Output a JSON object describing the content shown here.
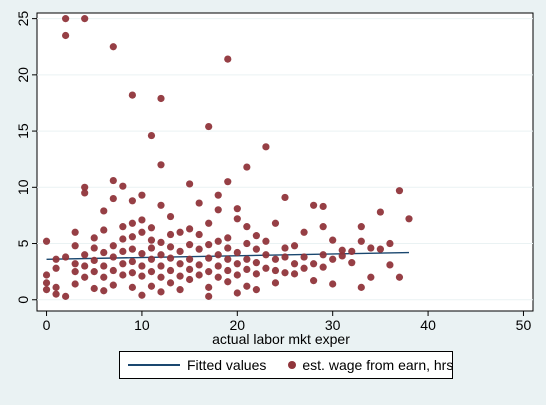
{
  "chart_data": {
    "type": "scatter",
    "title": "",
    "xlabel": "actual labor mkt exper",
    "ylabel": "",
    "xlim": [
      -1,
      51
    ],
    "ylim": [
      -1,
      25.5
    ],
    "x_ticks": [
      0,
      10,
      20,
      30,
      40,
      50
    ],
    "y_ticks": [
      0,
      5,
      10,
      15,
      20,
      25
    ],
    "x_tick_labels": [
      "0",
      "10",
      "20",
      "30",
      "40",
      "50"
    ],
    "y_tick_labels": [
      "0",
      "5",
      "10",
      "15",
      "20",
      "25"
    ],
    "grid": "horizontal",
    "legend": {
      "position": "bottom",
      "entries": [
        "Fitted values",
        "est. wage from earn, hrs"
      ]
    },
    "series": [
      {
        "name": "est. wage from earn, hrs",
        "type": "scatter",
        "color": "#90353b",
        "points": [
          [
            2,
            25.0
          ],
          [
            4,
            25.0
          ],
          [
            2,
            23.5
          ],
          [
            7,
            22.5
          ],
          [
            19,
            21.4
          ],
          [
            9,
            18.2
          ],
          [
            12,
            17.9
          ],
          [
            17,
            15.4
          ],
          [
            11,
            14.6
          ],
          [
            23,
            13.6
          ],
          [
            12,
            12.0
          ],
          [
            21,
            11.8
          ],
          [
            7,
            10.6
          ],
          [
            15,
            10.3
          ],
          [
            19,
            10.5
          ],
          [
            4,
            10.0
          ],
          [
            8,
            10.1
          ],
          [
            4,
            9.5
          ],
          [
            10,
            9.3
          ],
          [
            18,
            9.3
          ],
          [
            25,
            9.1
          ],
          [
            37,
            9.7
          ],
          [
            7,
            9.0
          ],
          [
            9,
            8.8
          ],
          [
            12,
            8.4
          ],
          [
            16,
            8.6
          ],
          [
            18,
            8.0
          ],
          [
            28,
            8.4
          ],
          [
            29,
            8.3
          ],
          [
            35,
            7.8
          ],
          [
            0,
            5.2
          ],
          [
            3,
            6.0
          ],
          [
            6,
            7.9
          ],
          [
            10,
            7.1
          ],
          [
            13,
            7.4
          ],
          [
            20,
            7.2
          ],
          [
            24,
            6.8
          ],
          [
            38,
            7.2
          ],
          [
            27,
            6.0
          ],
          [
            29,
            6.5
          ],
          [
            33,
            6.5
          ],
          [
            8,
            6.5
          ],
          [
            14,
            6.0
          ],
          [
            17,
            6.8
          ],
          [
            21,
            6.5
          ],
          [
            30,
            5.3
          ],
          [
            36,
            5.0
          ],
          [
            3,
            4.8
          ],
          [
            5,
            5.5
          ],
          [
            9,
            4.5
          ],
          [
            11,
            5.3
          ],
          [
            13,
            5.8
          ],
          [
            15,
            4.9
          ],
          [
            19,
            5.5
          ],
          [
            22,
            4.5
          ],
          [
            26,
            4.8
          ],
          [
            31,
            4.4
          ],
          [
            34,
            4.6
          ],
          [
            25,
            3.8
          ],
          [
            28,
            3.2
          ],
          [
            32,
            3.3
          ],
          [
            36,
            3.1
          ],
          [
            37,
            2.0
          ],
          [
            30,
            1.4
          ],
          [
            33,
            1.1
          ],
          [
            28,
            1.7
          ],
          [
            26,
            2.3
          ],
          [
            24,
            1.5
          ],
          [
            21,
            1.2
          ],
          [
            19,
            1.6
          ],
          [
            17,
            1.1
          ],
          [
            15,
            1.8
          ],
          [
            13,
            1.5
          ],
          [
            11,
            1.2
          ],
          [
            9,
            1.1
          ],
          [
            7,
            1.3
          ],
          [
            5,
            1.0
          ],
          [
            3,
            1.4
          ],
          [
            1,
            1.1
          ],
          [
            2,
            0.3
          ],
          [
            10,
            0.4
          ],
          [
            17,
            0.3
          ],
          [
            20,
            0.6
          ],
          [
            0,
            2.2
          ],
          [
            0,
            1.5
          ],
          [
            1,
            2.8
          ],
          [
            1,
            3.6
          ],
          [
            2,
            3.8
          ],
          [
            3,
            2.5
          ],
          [
            3,
            3.2
          ],
          [
            4,
            2.0
          ],
          [
            4,
            3.0
          ],
          [
            4,
            4.0
          ],
          [
            5,
            2.5
          ],
          [
            5,
            3.5
          ],
          [
            6,
            2.0
          ],
          [
            6,
            3.0
          ],
          [
            6,
            4.2
          ],
          [
            7,
            2.6
          ],
          [
            7,
            3.8
          ],
          [
            7,
            4.8
          ],
          [
            8,
            2.2
          ],
          [
            8,
            3.2
          ],
          [
            8,
            4.3
          ],
          [
            8,
            5.4
          ],
          [
            9,
            2.4
          ],
          [
            9,
            3.4
          ],
          [
            9,
            5.6
          ],
          [
            10,
            2.1
          ],
          [
            10,
            3.0
          ],
          [
            10,
            4.1
          ],
          [
            10,
            6.0
          ],
          [
            11,
            2.5
          ],
          [
            11,
            3.6
          ],
          [
            11,
            4.6
          ],
          [
            12,
            2.0
          ],
          [
            12,
            3.0
          ],
          [
            12,
            4.0
          ],
          [
            12,
            5.1
          ],
          [
            13,
            2.6
          ],
          [
            13,
            3.7
          ],
          [
            13,
            4.7
          ],
          [
            14,
            2.1
          ],
          [
            14,
            3.2
          ],
          [
            14,
            4.3
          ],
          [
            15,
            2.7
          ],
          [
            15,
            3.6
          ],
          [
            16,
            2.2
          ],
          [
            16,
            3.1
          ],
          [
            16,
            4.5
          ],
          [
            16,
            5.8
          ],
          [
            17,
            2.5
          ],
          [
            17,
            3.7
          ],
          [
            17,
            4.9
          ],
          [
            18,
            2.0
          ],
          [
            18,
            3.0
          ],
          [
            18,
            4.0
          ],
          [
            18,
            5.2
          ],
          [
            19,
            2.6
          ],
          [
            19,
            3.6
          ],
          [
            19,
            4.6
          ],
          [
            20,
            2.2
          ],
          [
            20,
            3.2
          ],
          [
            20,
            4.2
          ],
          [
            21,
            2.7
          ],
          [
            21,
            3.6
          ],
          [
            21,
            5.0
          ],
          [
            22,
            2.3
          ],
          [
            22,
            3.3
          ],
          [
            23,
            2.8
          ],
          [
            23,
            4.0
          ],
          [
            23,
            5.2
          ],
          [
            24,
            2.6
          ],
          [
            24,
            3.6
          ],
          [
            25,
            2.4
          ],
          [
            25,
            4.6
          ],
          [
            26,
            3.2
          ],
          [
            27,
            2.8
          ],
          [
            27,
            3.8
          ],
          [
            29,
            2.9
          ],
          [
            29,
            4.0
          ],
          [
            30,
            3.6
          ],
          [
            31,
            3.9
          ],
          [
            32,
            4.3
          ],
          [
            33,
            5.2
          ],
          [
            34,
            2.0
          ],
          [
            35,
            4.5
          ],
          [
            1,
            0.5
          ],
          [
            6,
            0.8
          ],
          [
            12,
            0.7
          ],
          [
            14,
            0.9
          ],
          [
            22,
            0.9
          ],
          [
            0,
            0.9
          ],
          [
            5,
            4.6
          ],
          [
            11,
            6.4
          ],
          [
            15,
            6.3
          ],
          [
            20,
            8.1
          ],
          [
            22,
            5.7
          ],
          [
            9,
            6.8
          ],
          [
            6,
            6.2
          ]
        ]
      },
      {
        "name": "Fitted values",
        "type": "line",
        "color": "#1a476f",
        "points": [
          [
            0,
            3.6
          ],
          [
            38,
            4.2
          ]
        ]
      }
    ]
  }
}
